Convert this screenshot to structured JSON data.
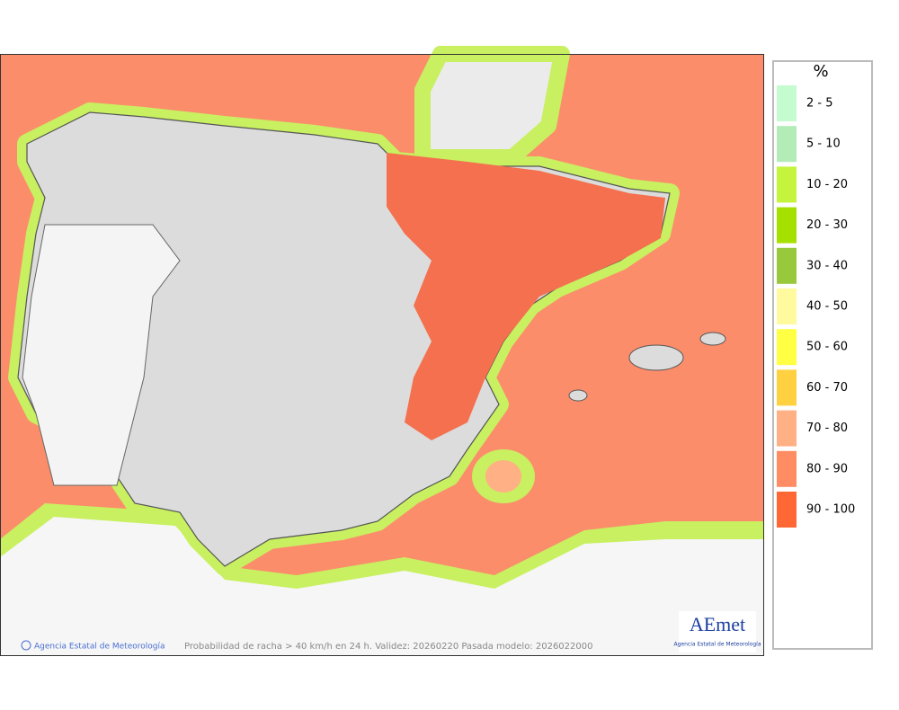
{
  "legend": {
    "title": "%",
    "items": [
      {
        "label": "2 - 5",
        "color": "#c4fcd0"
      },
      {
        "label": "5 - 10",
        "color": "#b4ecb8"
      },
      {
        "label": "10 - 20",
        "color": "#c4f43c"
      },
      {
        "label": "20 - 30",
        "color": "#a6e000"
      },
      {
        "label": "30 - 40",
        "color": "#98c83c"
      },
      {
        "label": "40 - 50",
        "color": "#fffa9e"
      },
      {
        "label": "50 - 60",
        "color": "#ffff44"
      },
      {
        "label": "60 - 70",
        "color": "#ffd040"
      },
      {
        "label": "70 - 80",
        "color": "#ffb084"
      },
      {
        "label": "80 - 90",
        "color": "#ff8c62"
      },
      {
        "label": "90 - 100",
        "color": "#ff6834"
      }
    ]
  },
  "footer": {
    "credit": "Agencia Estatal de Meteorología",
    "caption": "Probabilidad de racha > 40 km/h en 24 h. Validez: 20260220 Pasada modelo: 2026022000"
  },
  "logo": {
    "name": "AEmet",
    "subtitle": "Agencia Estatal de Meteorología"
  }
}
